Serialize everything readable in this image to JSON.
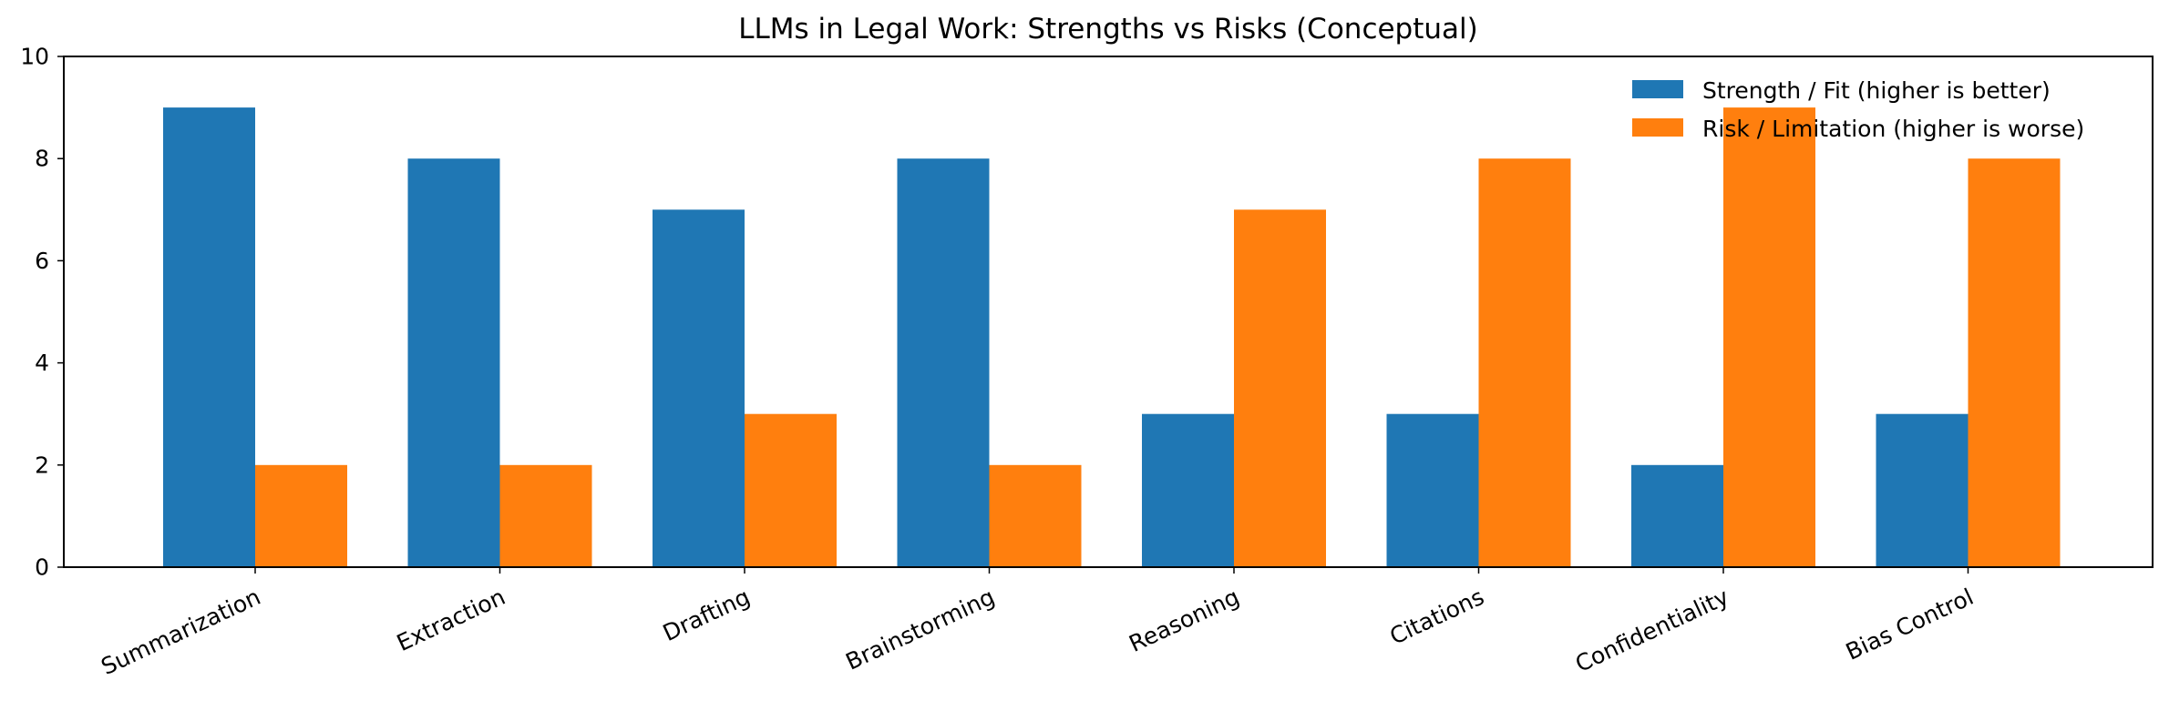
{
  "chart_data": {
    "type": "bar",
    "title": "LLMs in Legal Work: Strengths vs Risks (Conceptual)",
    "xlabel": "",
    "ylabel": "",
    "categories": [
      "Summarization",
      "Extraction",
      "Drafting",
      "Brainstorming",
      "Reasoning",
      "Citations",
      "Confidentiality",
      "Bias Control"
    ],
    "series": [
      {
        "name": "Strength / Fit (higher is better)",
        "color": "#1f77b4",
        "values": [
          9,
          8,
          7,
          8,
          3,
          3,
          2,
          3
        ]
      },
      {
        "name": "Risk / Limitation (higher is worse)",
        "color": "#ff7f0e",
        "values": [
          2,
          2,
          3,
          2,
          7,
          8,
          9,
          8
        ]
      }
    ],
    "ylim": [
      0,
      10
    ],
    "yticks": [
      0,
      2,
      4,
      6,
      8,
      10
    ],
    "grid": false,
    "legend_position": "top-right"
  }
}
